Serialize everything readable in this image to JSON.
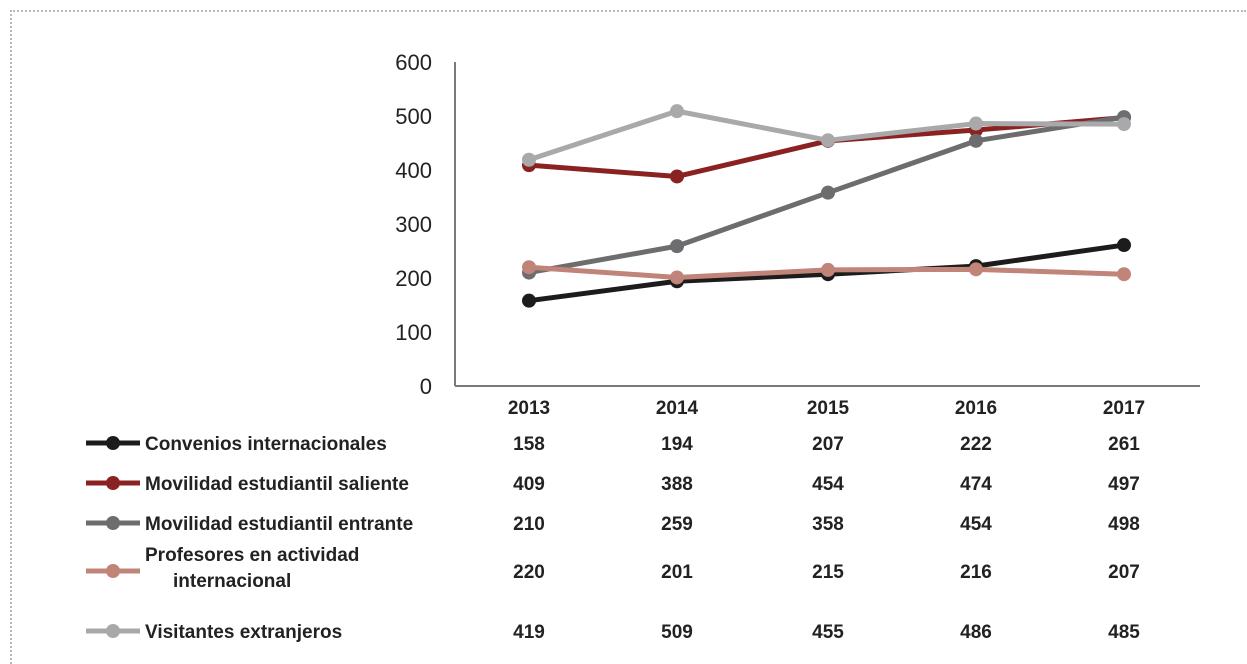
{
  "chart_data": {
    "type": "line",
    "categories": [
      "2013",
      "2014",
      "2015",
      "2016",
      "2017"
    ],
    "ylim": [
      0,
      600
    ],
    "yticks": [
      "0",
      "100",
      "200",
      "300",
      "400",
      "500",
      "600"
    ],
    "grid": false,
    "legend": "bottom-table",
    "series": [
      {
        "name": "Convenios internacionales",
        "color": "#1c1c1c",
        "values": [
          158,
          194,
          207,
          222,
          261
        ]
      },
      {
        "name": "Movilidad estudiantil saliente",
        "color": "#8b2222",
        "values": [
          409,
          388,
          454,
          474,
          497
        ]
      },
      {
        "name": "Movilidad estudiantil entrante",
        "color": "#6d6d6f",
        "values": [
          210,
          259,
          358,
          454,
          498
        ]
      },
      {
        "name": "Profesores en actividad internacional",
        "name_lines": [
          "Profesores en actividad",
          "internacional"
        ],
        "color": "#c08479",
        "values": [
          220,
          201,
          215,
          216,
          207
        ]
      },
      {
        "name": "Visitantes extranjeros",
        "color": "#a9a9ab",
        "values": [
          419,
          509,
          455,
          486,
          485
        ]
      }
    ]
  }
}
